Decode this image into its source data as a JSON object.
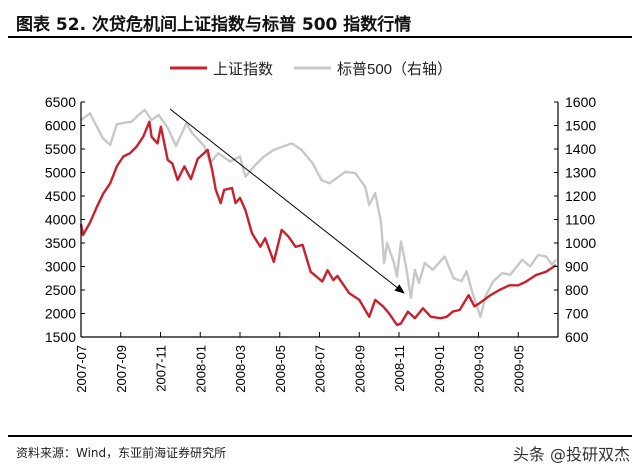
{
  "title": "图表 52. 次贷危机间上证指数与标普 500 指数行情",
  "source": "资料来源：Wind，东亚前海证券研究所",
  "watermark": "头条 @投研双杰",
  "chart_data": {
    "type": "line",
    "title": "次贷危机间上证指数与标普 500 指数行情",
    "x_unit": "months since 2007-07",
    "xlim": [
      0,
      24
    ],
    "x_ticks": [
      0,
      2,
      4,
      6,
      8,
      10,
      12,
      14,
      16,
      18,
      20,
      22
    ],
    "x_tick_labels": [
      "2007-07",
      "2007-09",
      "2007-11",
      "2008-01",
      "2008-03",
      "2008-05",
      "2008-07",
      "2008-09",
      "2008-11",
      "2009-01",
      "2009-03",
      "2009-05"
    ],
    "y_left": {
      "lim": [
        1500,
        6500
      ],
      "ticks": [
        1500,
        2000,
        2500,
        3000,
        3500,
        4000,
        4500,
        5000,
        5500,
        6000,
        6500
      ]
    },
    "y_right": {
      "lim": [
        600,
        1600
      ],
      "ticks": [
        600,
        700,
        800,
        900,
        1000,
        1100,
        1200,
        1300,
        1400,
        1500,
        1600
      ]
    },
    "legend_position": "top-center",
    "annotation": "arrow indicating downtrend from late 2007 to 2008-11",
    "series": [
      {
        "name": "上证指数",
        "axis": "left",
        "color": "#c8202d",
        "points": [
          [
            0,
            3900
          ],
          [
            0.1,
            3670
          ],
          [
            0.45,
            3930
          ],
          [
            0.8,
            4270
          ],
          [
            1.13,
            4560
          ],
          [
            1.47,
            4770
          ],
          [
            1.8,
            5130
          ],
          [
            2.13,
            5340
          ],
          [
            2.47,
            5410
          ],
          [
            2.8,
            5550
          ],
          [
            3.13,
            5760
          ],
          [
            3.44,
            6080
          ],
          [
            3.55,
            5760
          ],
          [
            3.85,
            5620
          ],
          [
            4.02,
            5975
          ],
          [
            4.36,
            5265
          ],
          [
            4.6,
            5190
          ],
          [
            4.86,
            4840
          ],
          [
            5.2,
            5130
          ],
          [
            5.53,
            4860
          ],
          [
            5.87,
            5290
          ],
          [
            6.37,
            5480
          ],
          [
            6.6,
            5050
          ],
          [
            6.78,
            4630
          ],
          [
            7.03,
            4350
          ],
          [
            7.2,
            4630
          ],
          [
            7.6,
            4670
          ],
          [
            7.78,
            4350
          ],
          [
            8.0,
            4460
          ],
          [
            8.27,
            4200
          ],
          [
            8.6,
            3710
          ],
          [
            9.02,
            3420
          ],
          [
            9.27,
            3600
          ],
          [
            9.7,
            3100
          ],
          [
            10.1,
            3780
          ],
          [
            10.45,
            3630
          ],
          [
            10.8,
            3420
          ],
          [
            11.15,
            3460
          ],
          [
            11.55,
            2890
          ],
          [
            12.14,
            2680
          ],
          [
            12.4,
            2920
          ],
          [
            12.7,
            2710
          ],
          [
            12.9,
            2800
          ],
          [
            13.5,
            2430
          ],
          [
            14.0,
            2290
          ],
          [
            14.5,
            1930
          ],
          [
            14.8,
            2290
          ],
          [
            15.2,
            2150
          ],
          [
            15.5,
            2000
          ],
          [
            15.9,
            1755
          ],
          [
            16.1,
            1790
          ],
          [
            16.45,
            2040
          ],
          [
            16.8,
            1900
          ],
          [
            17.2,
            2110
          ],
          [
            17.6,
            1930
          ],
          [
            18.1,
            1900
          ],
          [
            18.4,
            1930
          ],
          [
            18.7,
            2040
          ],
          [
            19.05,
            2075
          ],
          [
            19.5,
            2390
          ],
          [
            19.8,
            2150
          ],
          [
            20.05,
            2220
          ],
          [
            20.6,
            2390
          ],
          [
            21.05,
            2500
          ],
          [
            21.55,
            2600
          ],
          [
            22.0,
            2600
          ],
          [
            22.4,
            2680
          ],
          [
            22.9,
            2820
          ],
          [
            23.4,
            2890
          ],
          [
            23.9,
            3030
          ]
        ]
      },
      {
        "name": "标普500（右轴）",
        "axis": "right",
        "color": "#c8c8c8",
        "points": [
          [
            0,
            1523
          ],
          [
            0.45,
            1552
          ],
          [
            0.8,
            1495
          ],
          [
            1.1,
            1445
          ],
          [
            1.47,
            1417
          ],
          [
            1.8,
            1505
          ],
          [
            2.2,
            1512
          ],
          [
            2.55,
            1516
          ],
          [
            2.9,
            1545
          ],
          [
            3.2,
            1566
          ],
          [
            3.55,
            1523
          ],
          [
            3.9,
            1545
          ],
          [
            4.36,
            1490
          ],
          [
            4.78,
            1413
          ],
          [
            5.3,
            1509
          ],
          [
            5.6,
            1467
          ],
          [
            6.2,
            1413
          ],
          [
            6.5,
            1340
          ],
          [
            6.9,
            1382
          ],
          [
            7.5,
            1347
          ],
          [
            8.0,
            1368
          ],
          [
            8.27,
            1282
          ],
          [
            8.7,
            1325
          ],
          [
            9.2,
            1368
          ],
          [
            9.7,
            1396
          ],
          [
            10.6,
            1424
          ],
          [
            11.1,
            1396
          ],
          [
            11.65,
            1340
          ],
          [
            12.1,
            1268
          ],
          [
            12.5,
            1254
          ],
          [
            13.3,
            1303
          ],
          [
            13.8,
            1297
          ],
          [
            14.3,
            1240
          ],
          [
            14.5,
            1162
          ],
          [
            14.8,
            1212
          ],
          [
            15.1,
            1085
          ],
          [
            15.25,
            915
          ],
          [
            15.4,
            1000
          ],
          [
            15.75,
            915
          ],
          [
            15.9,
            857
          ],
          [
            16.1,
            1006
          ],
          [
            16.35,
            900
          ],
          [
            16.6,
            766
          ],
          [
            16.8,
            886
          ],
          [
            17.0,
            830
          ],
          [
            17.3,
            915
          ],
          [
            17.7,
            886
          ],
          [
            18.3,
            942
          ],
          [
            18.75,
            850
          ],
          [
            19.15,
            838
          ],
          [
            19.4,
            880
          ],
          [
            19.7,
            787
          ],
          [
            20.1,
            686
          ],
          [
            20.35,
            773
          ],
          [
            20.75,
            838
          ],
          [
            21.2,
            872
          ],
          [
            21.6,
            865
          ],
          [
            22.2,
            929
          ],
          [
            22.6,
            900
          ],
          [
            23.0,
            949
          ],
          [
            23.4,
            942
          ],
          [
            23.7,
            908
          ],
          [
            23.9,
            929
          ]
        ]
      }
    ]
  }
}
